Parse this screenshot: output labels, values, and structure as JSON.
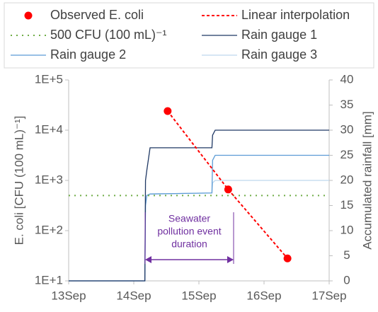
{
  "chart_data": {
    "type": "line",
    "y_label": "E. coli [CFU (100 mL)⁻¹]",
    "y2_label": "Accumulated rainfall [mm]",
    "annotation": [
      "Seawater",
      "pollution event",
      "duration"
    ],
    "xlim": [
      0,
      4
    ],
    "xticks": [
      {
        "value": 0,
        "label": "13Sep"
      },
      {
        "value": 1,
        "label": "14Sep"
      },
      {
        "value": 2,
        "label": "15Sep"
      },
      {
        "value": 3,
        "label": "16Sep"
      },
      {
        "value": 4,
        "label": "17Sep"
      }
    ],
    "ylim": [
      10,
      100000
    ],
    "log_y": true,
    "yticks": [
      {
        "value": 10,
        "label": "1E+1"
      },
      {
        "value": 100,
        "label": "1E+2"
      },
      {
        "value": 1000,
        "label": "1E+3"
      },
      {
        "value": 10000,
        "label": "1E+4"
      },
      {
        "value": 100000,
        "label": "1E+5"
      }
    ],
    "y2lim": [
      0,
      40
    ],
    "y2ticks": [
      0,
      5,
      10,
      15,
      20,
      25,
      30,
      35,
      40
    ],
    "series": [
      {
        "name": "Observed E. coli",
        "color": "#ff0000",
        "style": "marker",
        "x": [
          1.52,
          2.45,
          3.36
        ],
        "values": [
          24000,
          660,
          28
        ]
      },
      {
        "name": "Linear interpolation",
        "color": "#ff0000",
        "style": "dashed",
        "x": [
          1.52,
          2.45,
          3.36
        ],
        "values": [
          24000,
          660,
          28
        ]
      },
      {
        "name": "500 CFU (100 mL)⁻¹",
        "color": "#70ad47",
        "style": "dotted",
        "x": [
          0,
          4
        ],
        "values": [
          500,
          500
        ]
      },
      {
        "name": "Rain gauge 1",
        "color": "#1f3864",
        "style": "solid",
        "axis": "y2",
        "x": [
          0,
          1.17,
          1.18,
          1.2,
          1.25,
          2.2,
          2.21,
          2.25,
          4
        ],
        "values": [
          0,
          0,
          20,
          22,
          26.5,
          26.5,
          29,
          30,
          30
        ]
      },
      {
        "name": "Rain gauge 2",
        "color": "#5b9bd5",
        "style": "solid",
        "axis": "y2",
        "x": [
          0,
          1.17,
          1.18,
          1.2,
          1.25,
          2.2,
          2.21,
          2.25,
          4
        ],
        "values": [
          0,
          0,
          15,
          17,
          17.3,
          17.5,
          24,
          25,
          25
        ]
      },
      {
        "name": "Rain gauge 3",
        "color": "#bdd7ee",
        "style": "solid",
        "axis": "y2",
        "x": [
          0,
          1.17,
          1.18,
          1.2,
          1.25,
          2.2,
          2.21,
          2.25,
          4
        ],
        "values": [
          0,
          0,
          15,
          17,
          17.3,
          17.5,
          19.5,
          20,
          20
        ]
      }
    ]
  }
}
